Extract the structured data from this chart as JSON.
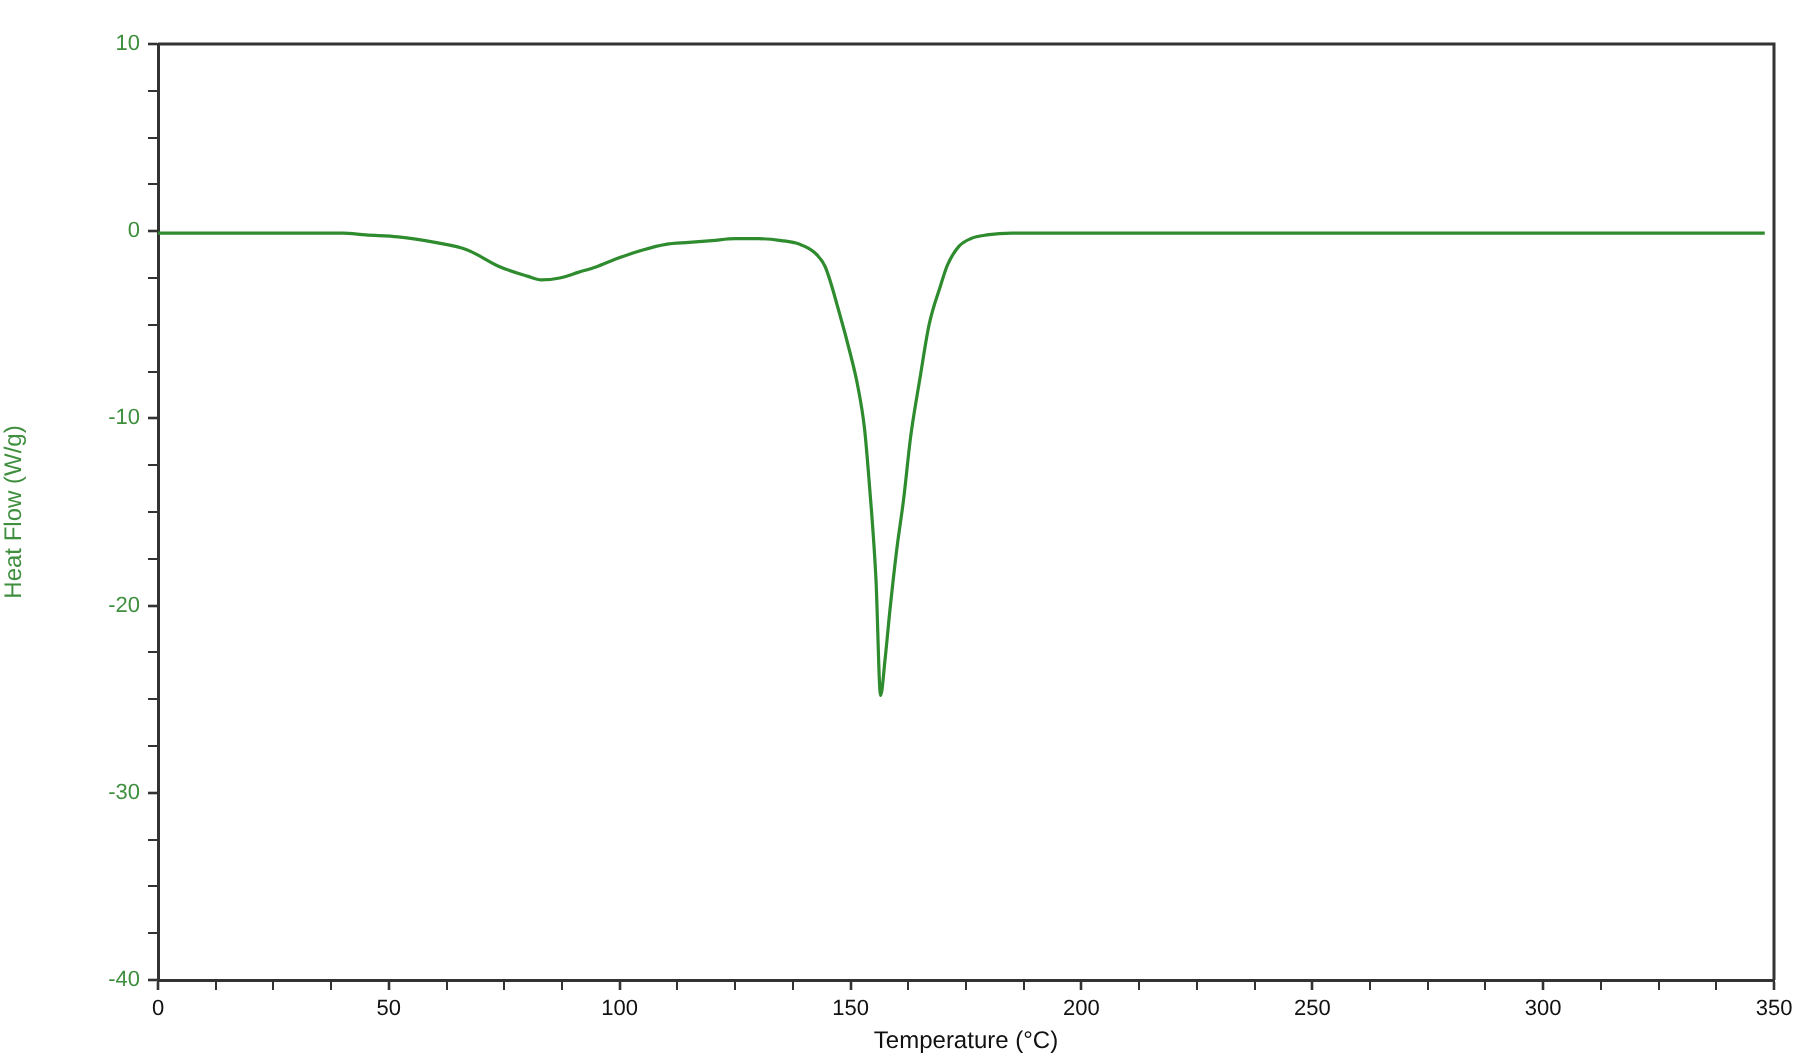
{
  "chart_data": {
    "type": "line",
    "xlabel": "Temperature (°C)",
    "ylabel": "Heat Flow (W/g)",
    "xlim": [
      0,
      350
    ],
    "ylim": [
      -40,
      10
    ],
    "xticks": [
      0,
      {
        "value": 12.5,
        "label": null
      },
      {
        "value": 25,
        "label": null
      },
      {
        "value": 37.5,
        "label": null
      },
      50,
      {
        "value": 62.5,
        "label": null
      },
      {
        "value": 75,
        "label": null
      },
      {
        "value": 87.5,
        "label": null
      },
      100,
      {
        "value": 112.5,
        "label": null
      },
      {
        "value": 125,
        "label": null
      },
      {
        "value": 137.5,
        "label": null
      },
      150,
      {
        "value": 162.5,
        "label": null
      },
      {
        "value": 175,
        "label": null
      },
      {
        "value": 187.5,
        "label": null
      },
      200,
      {
        "value": 212.5,
        "label": null
      },
      {
        "value": 225,
        "label": null
      },
      {
        "value": 237.5,
        "label": null
      },
      250,
      {
        "value": 262.5,
        "label": null
      },
      {
        "value": 275,
        "label": null
      },
      {
        "value": 287.5,
        "label": null
      },
      300,
      {
        "value": 312.5,
        "label": null
      },
      {
        "value": 325,
        "label": null
      },
      {
        "value": 337.5,
        "label": null
      },
      350
    ],
    "yticks": [
      -40,
      {
        "value": -37.5,
        "label": null
      },
      {
        "value": -35,
        "label": null
      },
      {
        "value": -32.5,
        "label": null
      },
      -30,
      {
        "value": -27.5,
        "label": null
      },
      {
        "value": -25,
        "label": null
      },
      {
        "value": -22.5,
        "label": null
      },
      -20,
      {
        "value": -17.5,
        "label": null
      },
      {
        "value": -15,
        "label": null
      },
      {
        "value": -12.5,
        "label": null
      },
      -10,
      {
        "value": -7.5,
        "label": null
      },
      {
        "value": -5,
        "label": null
      },
      {
        "value": -2.5,
        "label": null
      },
      0,
      {
        "value": 2.5,
        "label": null
      },
      {
        "value": 5,
        "label": null
      },
      {
        "value": 7.5,
        "label": null
      },
      10
    ],
    "marker": "none",
    "line_style": "solid",
    "series": [
      {
        "color": "#2e8b2e",
        "x": [
          0,
          10,
          20,
          30,
          40,
          45,
          52,
          60,
          67,
          74,
          80,
          83,
          87,
          91,
          95,
          99,
          105,
          110,
          115,
          120,
          125,
          130,
          135,
          139,
          142,
          144.5,
          147.5,
          150,
          151.5,
          153,
          154,
          155.5,
          156.5,
          157.5,
          158.5,
          160,
          161.5,
          163,
          165,
          167,
          169.5,
          171,
          173.5,
          176,
          179.5,
          185,
          200,
          250,
          300,
          348
        ],
        "values": [
          -0.1,
          -0.1,
          -0.1,
          -0.1,
          -0.1,
          -0.2,
          -0.3,
          -0.6,
          -1.0,
          -1.9,
          -2.4,
          -2.6,
          -2.5,
          -2.2,
          -1.9,
          -1.5,
          -1.0,
          -0.7,
          -0.6,
          -0.5,
          -0.4,
          -0.4,
          -0.5,
          -0.7,
          -1.1,
          -1.9,
          -4.3,
          -6.6,
          -8.2,
          -10.5,
          -13.3,
          -18.6,
          -24.8,
          -22.8,
          -20.3,
          -17.0,
          -14.3,
          -11.0,
          -7.9,
          -5.0,
          -2.9,
          -1.8,
          -0.8,
          -0.4,
          -0.2,
          -0.1,
          -0.1,
          -0.1,
          -0.1,
          -0.1
        ]
      }
    ]
  }
}
